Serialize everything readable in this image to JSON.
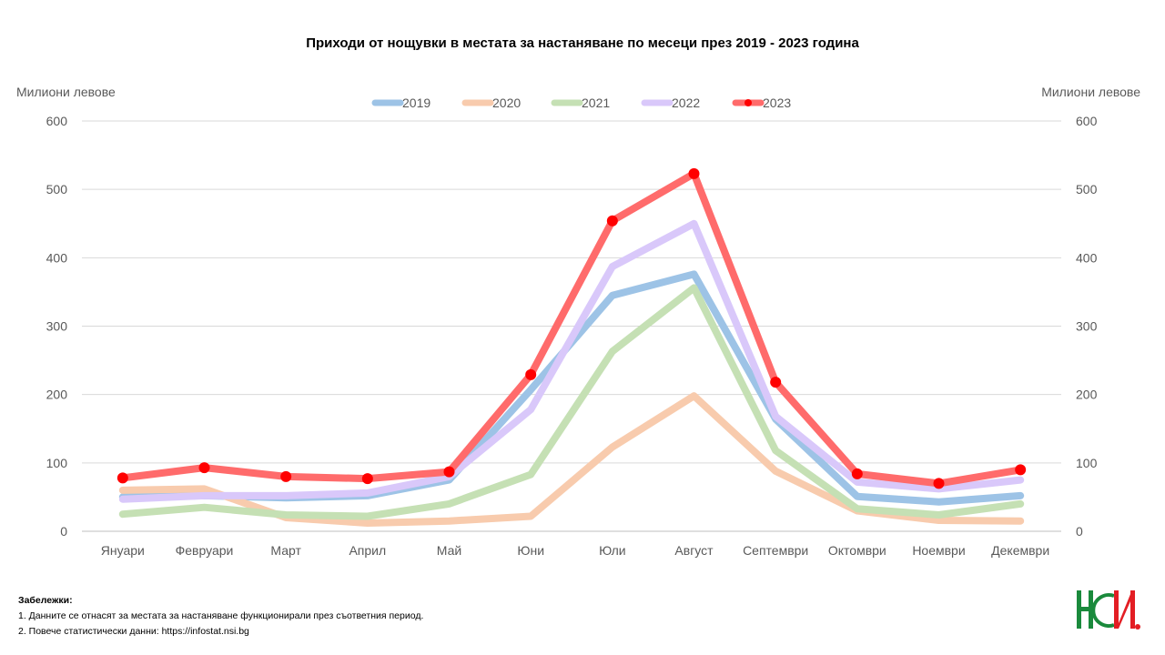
{
  "chart_data": {
    "type": "line",
    "title": "Приходи от нощувки в местата за настаняване по месеци през 2019 - 2023 година",
    "ylabel_left": "Милиони левове",
    "ylabel_right": "Милиони левове",
    "ylim": [
      0,
      600
    ],
    "yticks": [
      "0",
      "100",
      "200",
      "300",
      "400",
      "500",
      "600"
    ],
    "grid": true,
    "legend_position": "top",
    "categories": [
      "Януари",
      "Февруари",
      "Март",
      "Април",
      "Май",
      "Юни",
      "Юли",
      "Август",
      "Септември",
      "Октомври",
      "Ноември",
      "Декември"
    ],
    "series": [
      {
        "name": "2019",
        "color": "#9DC3E6",
        "markers": false,
        "values": [
          50,
          52,
          49,
          52,
          75,
          207,
          345,
          376,
          164,
          51,
          43,
          52
        ]
      },
      {
        "name": "2020",
        "color": "#F8CBAD",
        "markers": false,
        "values": [
          60,
          62,
          20,
          12,
          15,
          22,
          123,
          198,
          88,
          30,
          16,
          15
        ]
      },
      {
        "name": "2021",
        "color": "#C5E0B4",
        "markers": false,
        "values": [
          25,
          35,
          24,
          22,
          40,
          83,
          263,
          356,
          118,
          33,
          24,
          40
        ]
      },
      {
        "name": "2022",
        "color": "#D9C8FA",
        "markers": false,
        "values": [
          47,
          52,
          52,
          56,
          80,
          178,
          387,
          450,
          168,
          72,
          62,
          75
        ]
      },
      {
        "name": "2023",
        "color": "#FF6B6B",
        "marker_color": "#FF0000",
        "markers": true,
        "values": [
          78,
          93,
          80,
          77,
          87,
          229,
          454,
          523,
          218,
          84,
          70,
          90
        ]
      }
    ]
  },
  "notes": {
    "title": "Забележки:",
    "items": [
      "1. Данните се отнасят за местата за настаняване функционирали през съответния период.",
      "2. Повече статистически данни: https://infostat.nsi.bg"
    ]
  },
  "logo": {
    "letters": "НСИ",
    "colors": {
      "green": "#1A8A3C",
      "red": "#E31E24"
    }
  }
}
